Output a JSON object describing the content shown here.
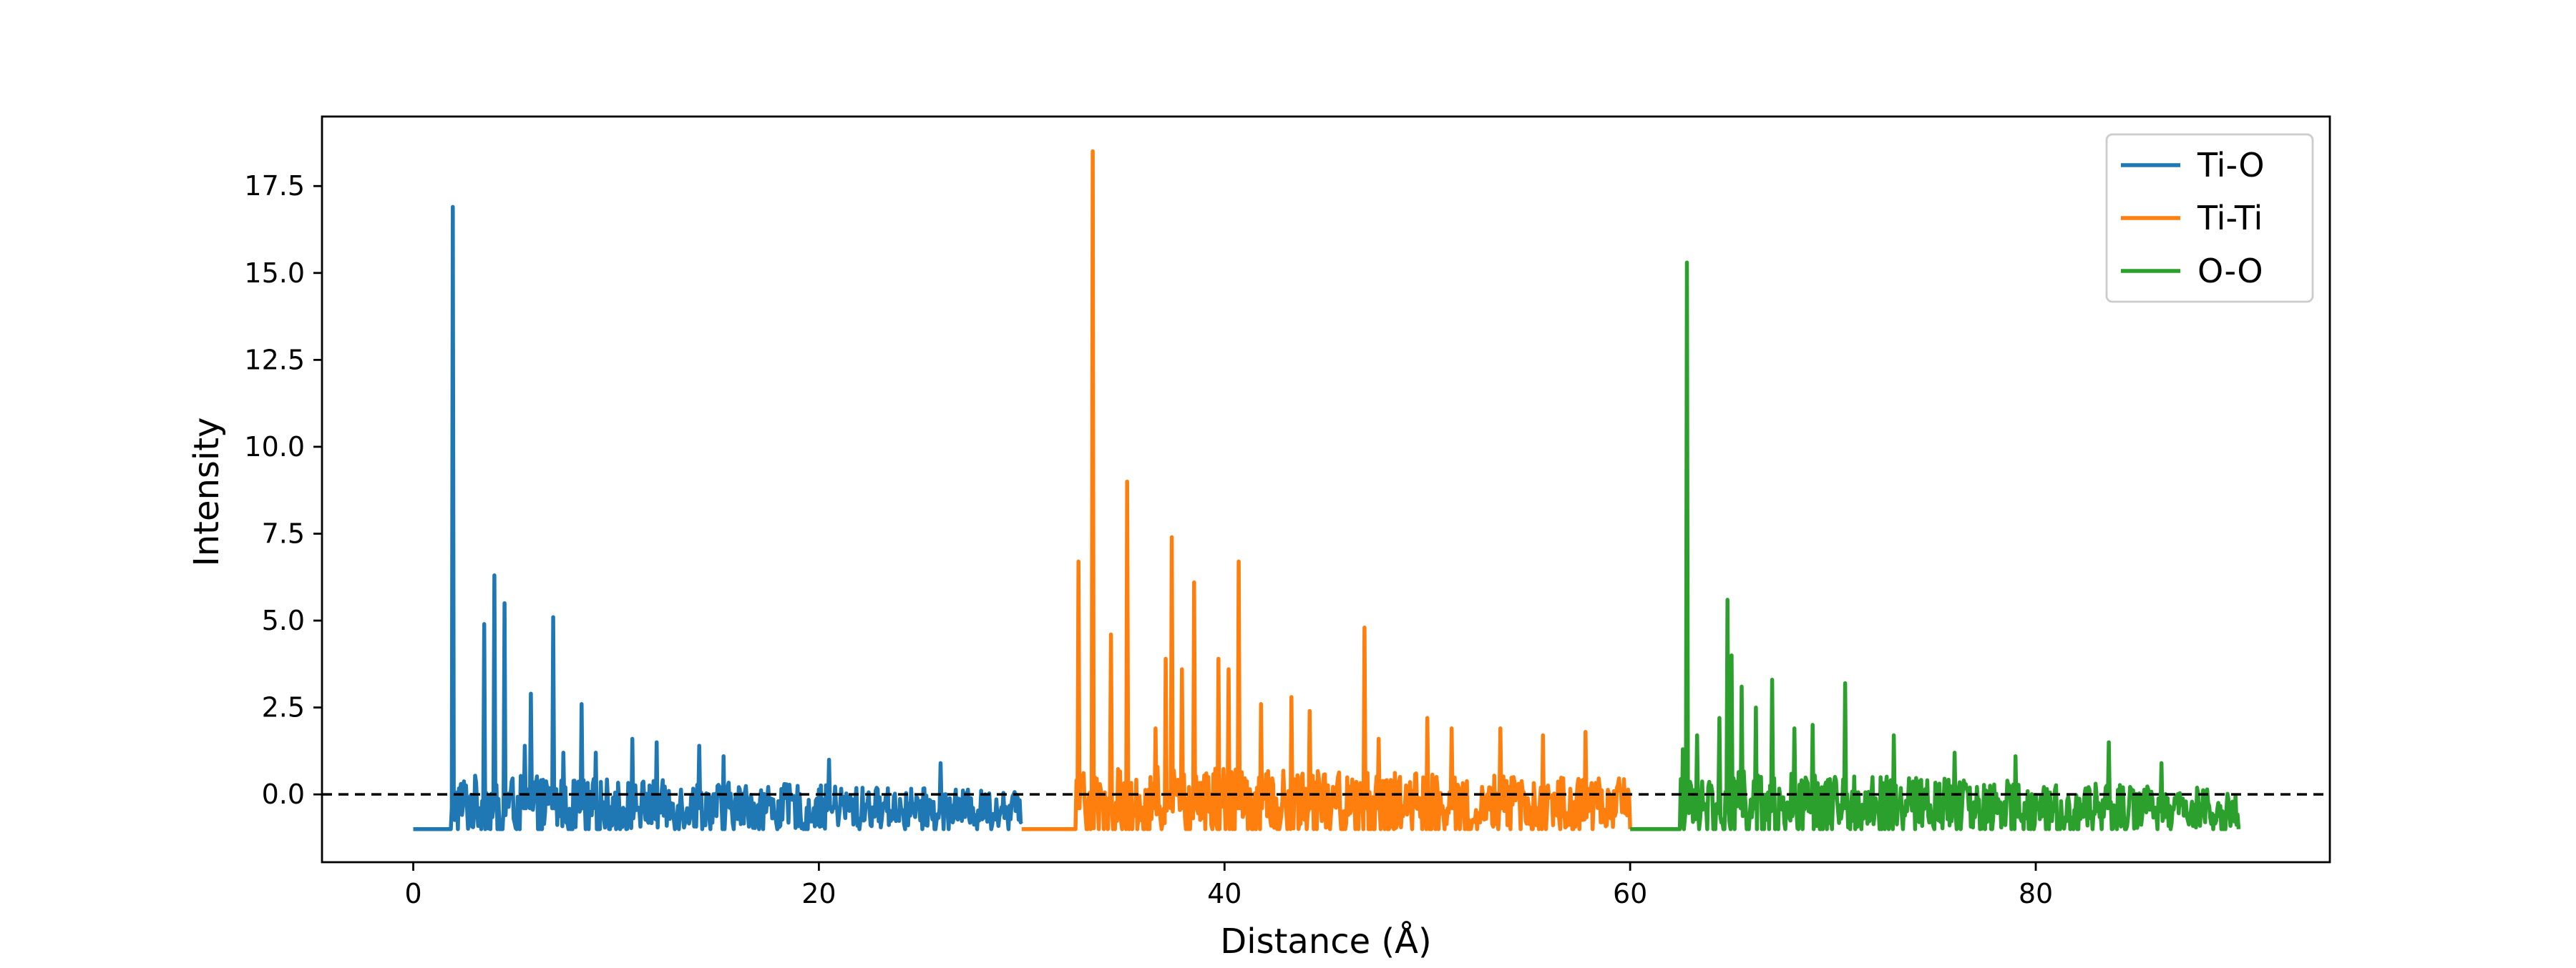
{
  "chart_data": {
    "type": "line",
    "title": "",
    "xlabel": "Distance (Å)",
    "ylabel": "Intensity",
    "xlim": [
      -4.5,
      94.5
    ],
    "ylim": [
      -1.95,
      19.5
    ],
    "x_ticks": [
      0,
      20,
      40,
      60,
      80
    ],
    "y_ticks": [
      0.0,
      2.5,
      5.0,
      7.5,
      10.0,
      12.5,
      15.0,
      17.5
    ],
    "x_tick_labels": [
      "0",
      "20",
      "40",
      "60",
      "80"
    ],
    "y_tick_labels": [
      "0.0",
      "2.5",
      "5.0",
      "7.5",
      "10.0",
      "12.5",
      "15.0",
      "17.5"
    ],
    "grid": false,
    "legend_position": "top-right",
    "reference_line": {
      "y": 0.0,
      "style": "dashed",
      "color": "#000000"
    },
    "series": [
      {
        "name": "Ti-O",
        "color": "#1f77b4",
        "x_start": 0,
        "x_end": 30,
        "baseline": -1.0,
        "onset": 1.9,
        "peaks": [
          [
            1.95,
            16.9
          ],
          [
            3.5,
            4.9
          ],
          [
            4.0,
            6.3
          ],
          [
            4.5,
            5.5
          ],
          [
            5.5,
            1.4
          ],
          [
            5.8,
            2.9
          ],
          [
            6.9,
            5.1
          ],
          [
            7.4,
            1.2
          ],
          [
            8.3,
            2.6
          ],
          [
            9.0,
            1.2
          ],
          [
            10.8,
            1.6
          ],
          [
            12.0,
            1.5
          ],
          [
            14.1,
            1.4
          ],
          [
            15.3,
            1.1
          ],
          [
            20.5,
            1.0
          ],
          [
            26.0,
            0.9
          ]
        ],
        "noise_amplitude": 0.8,
        "noise_decay_end": 0.45
      },
      {
        "name": "Ti-Ti",
        "color": "#ff7f0e",
        "x_start": 30,
        "x_end": 60,
        "baseline": -1.0,
        "onset": 32.7,
        "peaks": [
          [
            32.8,
            6.7
          ],
          [
            33.5,
            18.5
          ],
          [
            34.4,
            4.6
          ],
          [
            35.2,
            9.0
          ],
          [
            36.6,
            1.9
          ],
          [
            37.1,
            3.9
          ],
          [
            37.4,
            7.4
          ],
          [
            37.9,
            3.6
          ],
          [
            38.5,
            6.1
          ],
          [
            39.7,
            3.9
          ],
          [
            40.2,
            3.6
          ],
          [
            40.7,
            6.7
          ],
          [
            41.8,
            2.6
          ],
          [
            43.3,
            2.8
          ],
          [
            44.2,
            2.4
          ],
          [
            46.9,
            4.8
          ],
          [
            47.6,
            1.6
          ],
          [
            50.0,
            2.2
          ],
          [
            51.2,
            1.9
          ],
          [
            53.6,
            1.9
          ],
          [
            55.7,
            1.7
          ],
          [
            57.8,
            1.8
          ]
        ],
        "noise_amplitude": 1.0,
        "noise_decay_end": 0.7
      },
      {
        "name": "O-O",
        "color": "#2ca02c",
        "x_start": 60,
        "x_end": 90,
        "baseline": -1.0,
        "onset": 62.5,
        "peaks": [
          [
            62.6,
            1.3
          ],
          [
            62.8,
            15.3
          ],
          [
            63.3,
            1.7
          ],
          [
            64.4,
            2.2
          ],
          [
            64.8,
            5.6
          ],
          [
            65.0,
            4.0
          ],
          [
            65.5,
            3.1
          ],
          [
            66.2,
            2.5
          ],
          [
            67.0,
            3.3
          ],
          [
            68.1,
            1.9
          ],
          [
            69.0,
            2.0
          ],
          [
            70.6,
            3.2
          ],
          [
            73.0,
            1.7
          ],
          [
            76.0,
            1.2
          ],
          [
            79.0,
            1.1
          ],
          [
            83.6,
            1.5
          ],
          [
            86.2,
            0.9
          ]
        ],
        "noise_amplitude": 0.9,
        "noise_decay_end": 0.5
      }
    ]
  }
}
